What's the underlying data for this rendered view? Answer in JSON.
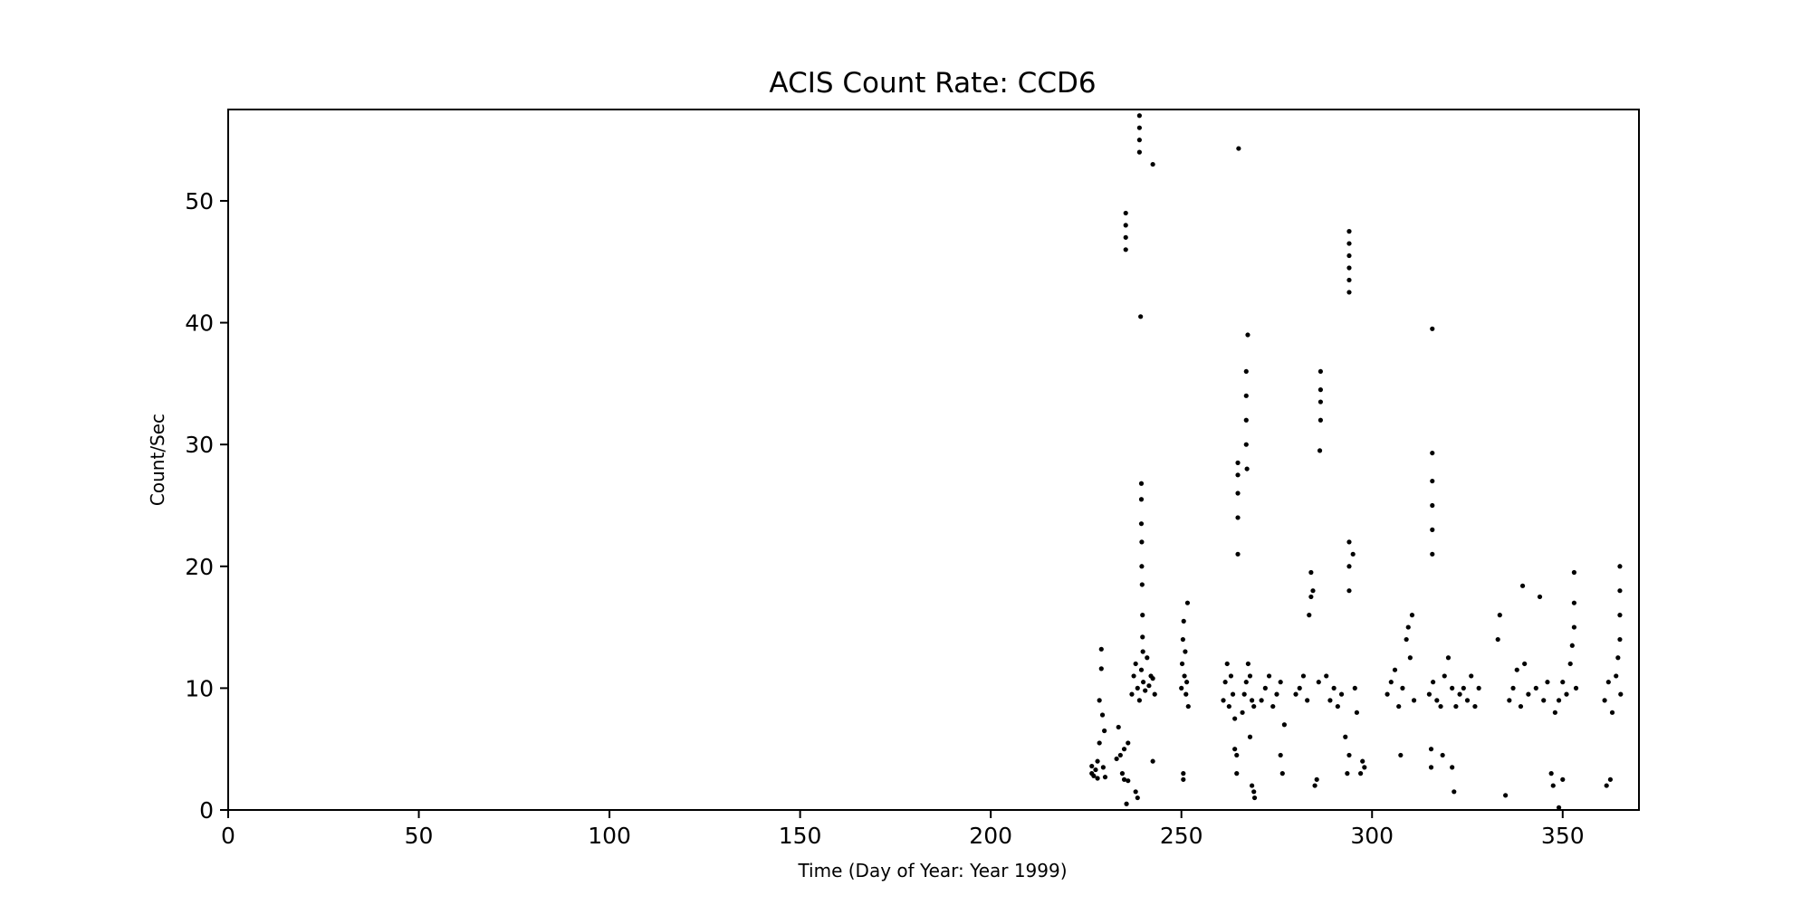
{
  "chart_data": {
    "type": "scatter",
    "title": "ACIS Count Rate: CCD6",
    "xlabel": "Time (Day of Year: Year 1999)",
    "ylabel": "Count/Sec",
    "xlim": [
      0,
      370
    ],
    "ylim": [
      0,
      57.5
    ],
    "xticks": [
      0,
      50,
      100,
      150,
      200,
      250,
      300,
      350
    ],
    "yticks": [
      0,
      10,
      20,
      30,
      40,
      50
    ],
    "xtick_labels": [
      "0",
      "50",
      "100",
      "150",
      "200",
      "250",
      "300",
      "350"
    ],
    "ytick_labels": [
      "0",
      "10",
      "20",
      "30",
      "40",
      "50"
    ],
    "grid": false,
    "marker_color": "#000000",
    "series": [
      {
        "points": [
          [
            226.5,
            3.0
          ],
          [
            226.5,
            3.6
          ],
          [
            227.0,
            2.8
          ],
          [
            227.5,
            3.3
          ],
          [
            228.0,
            4.0
          ],
          [
            228.0,
            2.6
          ],
          [
            228.5,
            5.5
          ],
          [
            228.5,
            9.0
          ],
          [
            229.0,
            13.2
          ],
          [
            229.0,
            11.6
          ],
          [
            229.3,
            7.8
          ],
          [
            229.5,
            3.5
          ],
          [
            229.8,
            6.5
          ],
          [
            230.0,
            2.7
          ],
          [
            233.0,
            4.2
          ],
          [
            233.5,
            6.8
          ],
          [
            234.0,
            4.5
          ],
          [
            234.5,
            3.0
          ],
          [
            235.0,
            2.5
          ],
          [
            235.0,
            5.0
          ],
          [
            235.4,
            46.0
          ],
          [
            235.4,
            47.0
          ],
          [
            235.4,
            48.0
          ],
          [
            235.4,
            49.0
          ],
          [
            235.6,
            0.5
          ],
          [
            236.0,
            2.4
          ],
          [
            236.0,
            5.5
          ],
          [
            237.0,
            9.5
          ],
          [
            237.5,
            11.0
          ],
          [
            238.0,
            12.0
          ],
          [
            238.5,
            10.0
          ],
          [
            239.0,
            9.0
          ],
          [
            239.5,
            11.5
          ],
          [
            240.0,
            10.5
          ],
          [
            240.5,
            9.8
          ],
          [
            241.0,
            12.5
          ],
          [
            241.5,
            10.2
          ],
          [
            242.0,
            11.0
          ],
          [
            242.5,
            10.8
          ],
          [
            243.0,
            9.5
          ],
          [
            238.0,
            1.5
          ],
          [
            238.5,
            1.0
          ],
          [
            239.0,
            57.0
          ],
          [
            239.0,
            56.0
          ],
          [
            239.0,
            55.0
          ],
          [
            239.0,
            54.0
          ],
          [
            239.3,
            40.5
          ],
          [
            239.5,
            26.8
          ],
          [
            239.5,
            25.5
          ],
          [
            239.5,
            23.5
          ],
          [
            239.6,
            22.0
          ],
          [
            239.6,
            20.0
          ],
          [
            239.7,
            18.5
          ],
          [
            239.8,
            16.0
          ],
          [
            239.8,
            14.2
          ],
          [
            239.9,
            13.0
          ],
          [
            242.5,
            4.0
          ],
          [
            242.5,
            53.0
          ],
          [
            250.0,
            10.0
          ],
          [
            250.2,
            12.0
          ],
          [
            250.4,
            14.0
          ],
          [
            250.6,
            15.5
          ],
          [
            250.8,
            11.0
          ],
          [
            251.0,
            13.0
          ],
          [
            251.2,
            9.5
          ],
          [
            251.4,
            10.5
          ],
          [
            251.6,
            17.0
          ],
          [
            251.8,
            8.5
          ],
          [
            250.5,
            3.0
          ],
          [
            250.5,
            2.5
          ],
          [
            261.0,
            9.0
          ],
          [
            261.5,
            10.5
          ],
          [
            262.0,
            12.0
          ],
          [
            262.5,
            8.5
          ],
          [
            263.0,
            11.0
          ],
          [
            263.5,
            9.5
          ],
          [
            264.0,
            7.5
          ],
          [
            264.0,
            5.0
          ],
          [
            264.5,
            3.0
          ],
          [
            264.5,
            4.5
          ],
          [
            264.8,
            21.0
          ],
          [
            264.8,
            24.0
          ],
          [
            264.8,
            26.0
          ],
          [
            264.8,
            27.5
          ],
          [
            264.8,
            28.5
          ],
          [
            265.0,
            54.3
          ],
          [
            266.0,
            8.0
          ],
          [
            266.5,
            9.5
          ],
          [
            267.0,
            10.5
          ],
          [
            267.5,
            12.0
          ],
          [
            268.0,
            11.0
          ],
          [
            268.5,
            9.0
          ],
          [
            269.0,
            8.5
          ],
          [
            267.0,
            30.0
          ],
          [
            267.0,
            32.0
          ],
          [
            267.0,
            34.0
          ],
          [
            267.0,
            36.0
          ],
          [
            267.2,
            28.0
          ],
          [
            267.4,
            39.0
          ],
          [
            268.0,
            6.0
          ],
          [
            268.5,
            2.0
          ],
          [
            269.0,
            1.5
          ],
          [
            269.2,
            1.0
          ],
          [
            271.0,
            9.0
          ],
          [
            272.0,
            10.0
          ],
          [
            273.0,
            11.0
          ],
          [
            274.0,
            8.5
          ],
          [
            275.0,
            9.5
          ],
          [
            276.0,
            10.5
          ],
          [
            276.0,
            4.5
          ],
          [
            276.5,
            3.0
          ],
          [
            277.0,
            7.0
          ],
          [
            280.0,
            9.5
          ],
          [
            281.0,
            10.0
          ],
          [
            282.0,
            11.0
          ],
          [
            283.0,
            9.0
          ],
          [
            283.5,
            16.0
          ],
          [
            284.0,
            17.5
          ],
          [
            284.0,
            19.5
          ],
          [
            284.5,
            18.0
          ],
          [
            285.0,
            2.0
          ],
          [
            285.5,
            2.5
          ],
          [
            286.0,
            10.5
          ],
          [
            286.3,
            29.5
          ],
          [
            286.5,
            32.0
          ],
          [
            286.5,
            33.5
          ],
          [
            286.5,
            36.0
          ],
          [
            286.5,
            34.5
          ],
          [
            288.0,
            11.0
          ],
          [
            289.0,
            9.0
          ],
          [
            290.0,
            10.0
          ],
          [
            291.0,
            8.5
          ],
          [
            292.0,
            9.5
          ],
          [
            293.0,
            6.0
          ],
          [
            293.5,
            3.0
          ],
          [
            294.0,
            4.5
          ],
          [
            294.0,
            20.0
          ],
          [
            294.0,
            22.0
          ],
          [
            294.0,
            18.0
          ],
          [
            294.0,
            42.5
          ],
          [
            294.0,
            43.5
          ],
          [
            294.0,
            44.5
          ],
          [
            294.0,
            45.5
          ],
          [
            294.0,
            46.5
          ],
          [
            294.0,
            47.5
          ],
          [
            295.0,
            21.0
          ],
          [
            295.5,
            10.0
          ],
          [
            296.0,
            8.0
          ],
          [
            297.0,
            3.0
          ],
          [
            297.5,
            4.0
          ],
          [
            298.0,
            3.5
          ],
          [
            304.0,
            9.5
          ],
          [
            305.0,
            10.5
          ],
          [
            306.0,
            11.5
          ],
          [
            307.0,
            8.5
          ],
          [
            307.5,
            4.5
          ],
          [
            308.0,
            10.0
          ],
          [
            309.0,
            14.0
          ],
          [
            309.5,
            15.0
          ],
          [
            310.0,
            12.5
          ],
          [
            310.5,
            16.0
          ],
          [
            311.0,
            9.0
          ],
          [
            315.0,
            9.5
          ],
          [
            315.5,
            3.5
          ],
          [
            315.5,
            5.0
          ],
          [
            315.8,
            21.0
          ],
          [
            315.8,
            23.0
          ],
          [
            315.8,
            25.0
          ],
          [
            315.8,
            27.0
          ],
          [
            315.8,
            29.3
          ],
          [
            315.8,
            39.5
          ],
          [
            316.0,
            10.5
          ],
          [
            317.0,
            9.0
          ],
          [
            318.0,
            8.5
          ],
          [
            318.5,
            4.5
          ],
          [
            319.0,
            11.0
          ],
          [
            320.0,
            12.5
          ],
          [
            321.0,
            10.0
          ],
          [
            321.0,
            3.5
          ],
          [
            321.5,
            1.5
          ],
          [
            322.0,
            8.5
          ],
          [
            323.0,
            9.5
          ],
          [
            324.0,
            10.0
          ],
          [
            325.0,
            9.0
          ],
          [
            326.0,
            11.0
          ],
          [
            327.0,
            8.5
          ],
          [
            328.0,
            10.0
          ],
          [
            333.0,
            14.0
          ],
          [
            333.5,
            16.0
          ],
          [
            335.0,
            1.2
          ],
          [
            336.0,
            9.0
          ],
          [
            337.0,
            10.0
          ],
          [
            338.0,
            11.5
          ],
          [
            339.0,
            8.5
          ],
          [
            339.5,
            18.4
          ],
          [
            340.0,
            12.0
          ],
          [
            341.0,
            9.5
          ],
          [
            343.0,
            10.0
          ],
          [
            344.0,
            17.5
          ],
          [
            345.0,
            9.0
          ],
          [
            346.0,
            10.5
          ],
          [
            347.0,
            3.0
          ],
          [
            347.5,
            2.0
          ],
          [
            348.0,
            8.0
          ],
          [
            349.0,
            9.0
          ],
          [
            350.0,
            10.5
          ],
          [
            351.0,
            9.5
          ],
          [
            352.0,
            12.0
          ],
          [
            352.5,
            13.5
          ],
          [
            353.0,
            15.0
          ],
          [
            353.0,
            17.0
          ],
          [
            353.0,
            19.5
          ],
          [
            353.5,
            10.0
          ],
          [
            349.0,
            0.2
          ],
          [
            350.0,
            2.5
          ],
          [
            361.0,
            9.0
          ],
          [
            361.5,
            2.0
          ],
          [
            362.0,
            10.5
          ],
          [
            362.5,
            2.5
          ],
          [
            363.0,
            8.0
          ],
          [
            364.0,
            11.0
          ],
          [
            364.5,
            12.5
          ],
          [
            365.0,
            14.0
          ],
          [
            365.0,
            16.0
          ],
          [
            365.0,
            18.0
          ],
          [
            365.0,
            20.0
          ],
          [
            365.2,
            9.5
          ]
        ]
      }
    ]
  }
}
